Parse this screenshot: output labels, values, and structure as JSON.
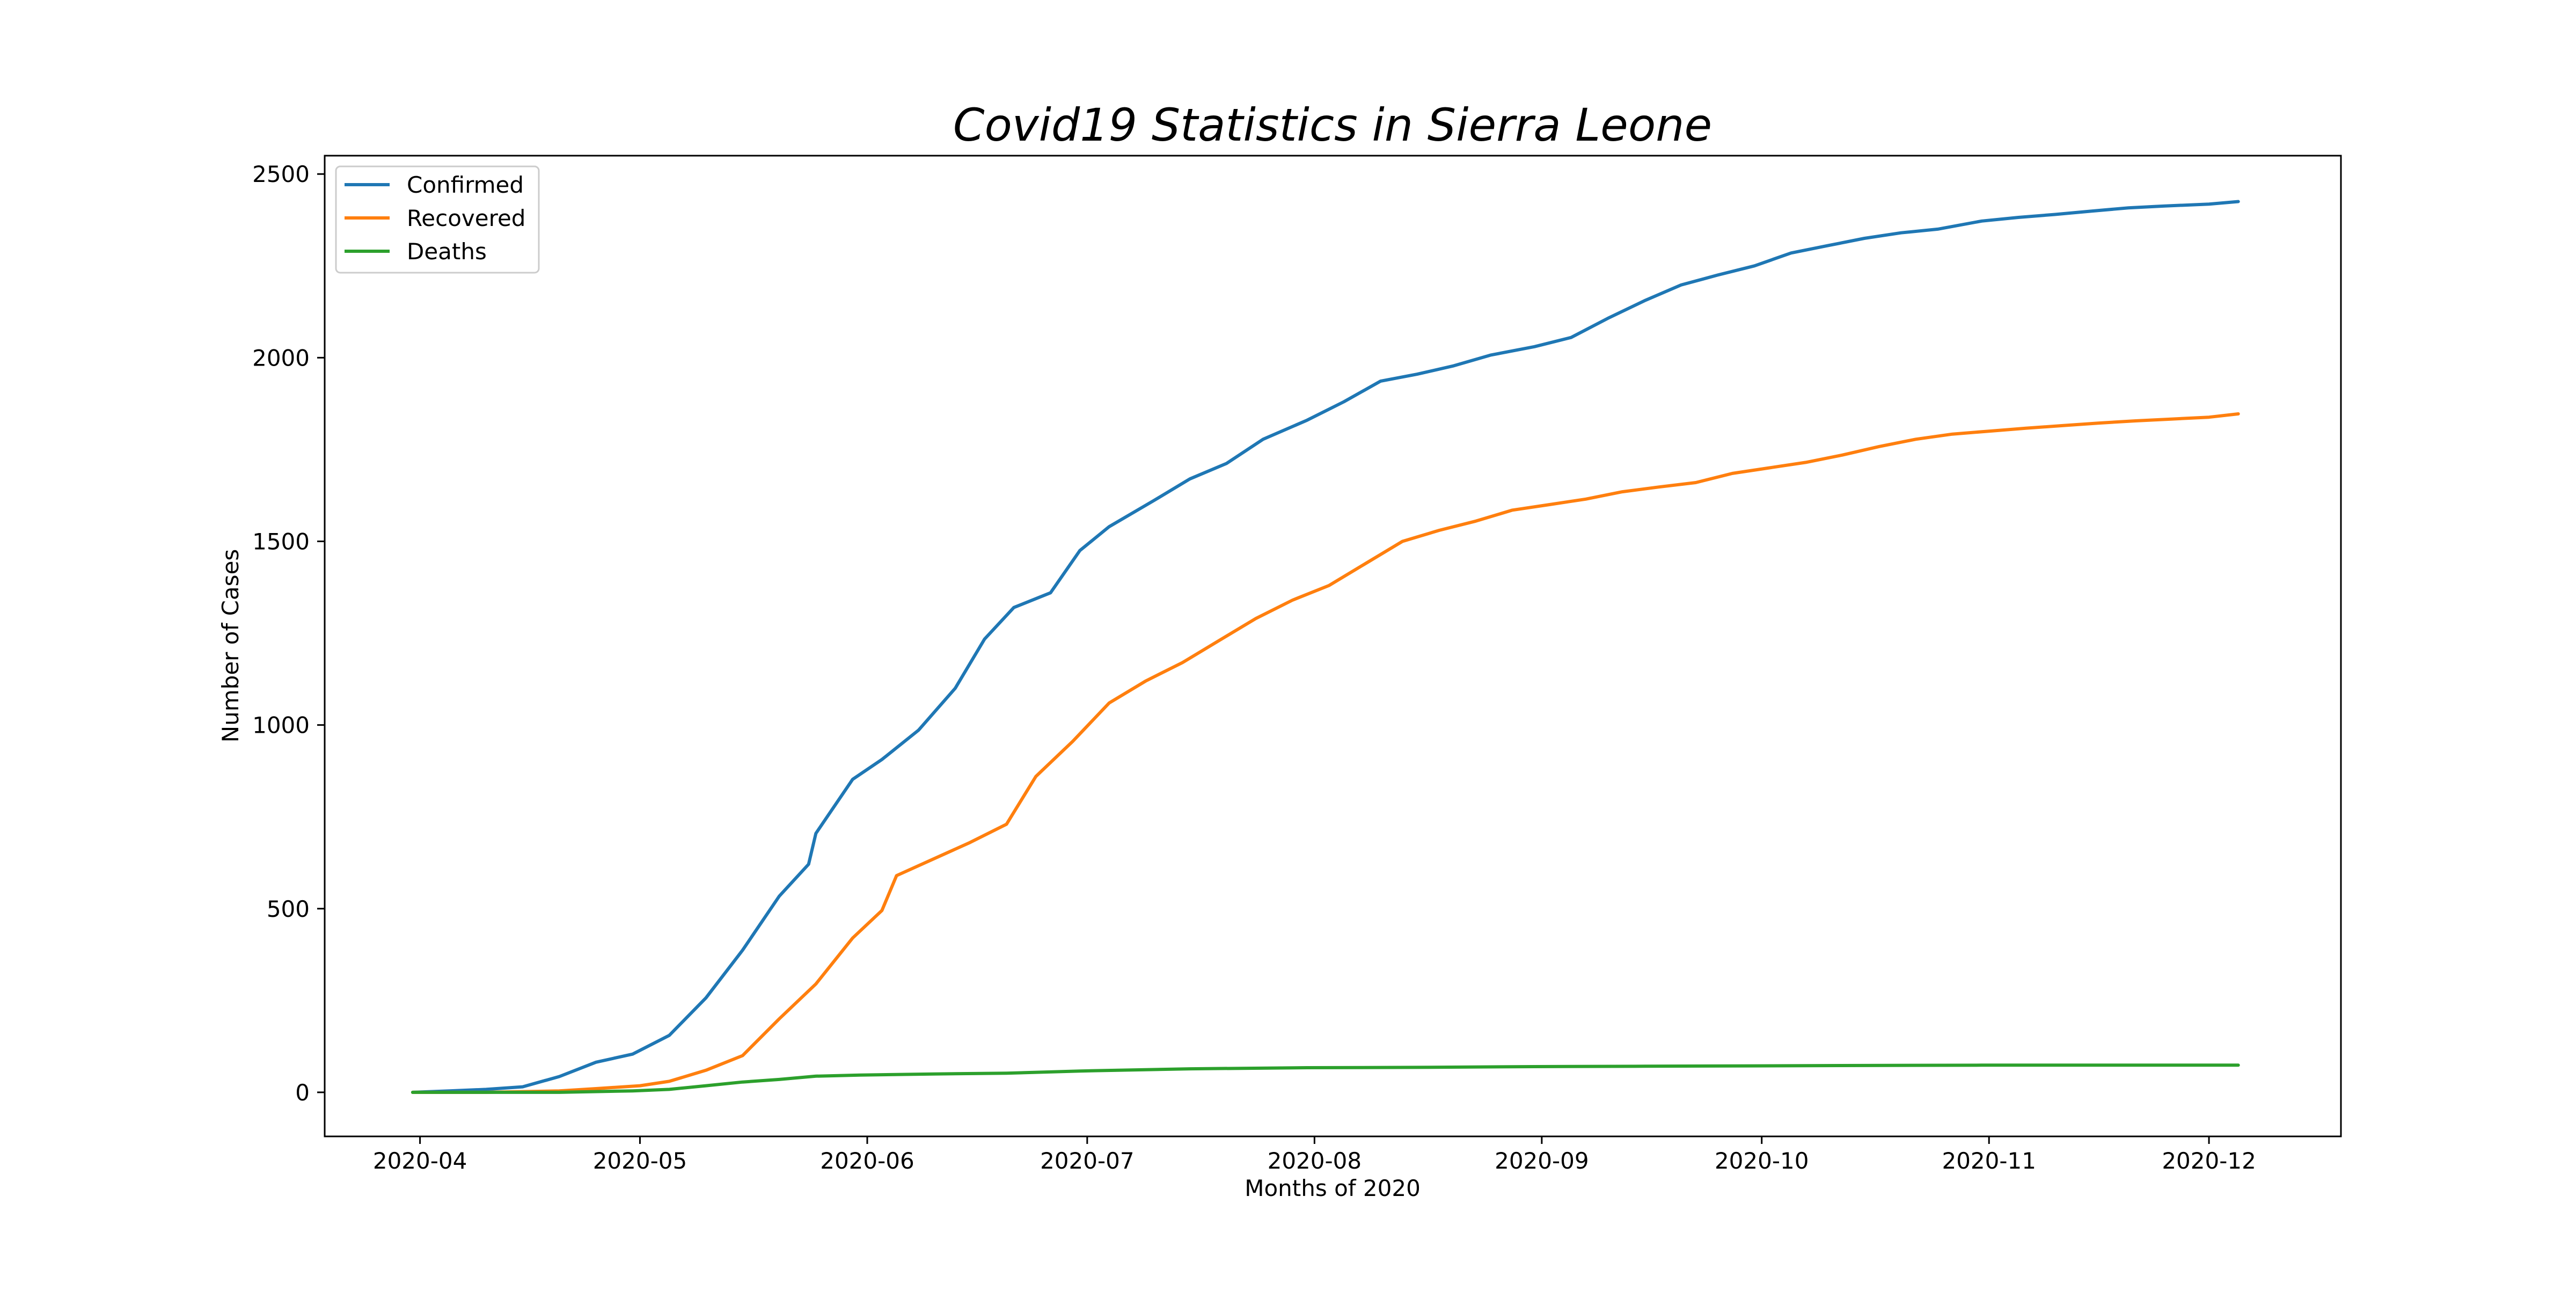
{
  "chart_data": {
    "type": "line",
    "title": "Covid19 Statistics in Sierra Leone",
    "xlabel": "Months of 2020",
    "ylabel": "Number of Cases",
    "xlim": [
      "2020-03-19",
      "2020-12-19"
    ],
    "ylim": [
      -120,
      2550
    ],
    "x_ticks": [
      "2020-04",
      "2020-05",
      "2020-06",
      "2020-07",
      "2020-08",
      "2020-09",
      "2020-10",
      "2020-11",
      "2020-12"
    ],
    "x_tick_dates": [
      "2020-04-01",
      "2020-05-01",
      "2020-06-01",
      "2020-07-01",
      "2020-08-01",
      "2020-09-01",
      "2020-10-01",
      "2020-11-01",
      "2020-12-01"
    ],
    "y_ticks": [
      0,
      500,
      1000,
      1500,
      2000,
      2500
    ],
    "grid": false,
    "legend_position": "top-left",
    "series": [
      {
        "name": "Confirmed",
        "color": "#1f77b4",
        "points": [
          [
            "2020-03-31",
            0
          ],
          [
            "2020-04-05",
            4
          ],
          [
            "2020-04-10",
            8
          ],
          [
            "2020-04-15",
            15
          ],
          [
            "2020-04-20",
            43
          ],
          [
            "2020-04-25",
            82
          ],
          [
            "2020-04-30",
            104
          ],
          [
            "2020-05-05",
            155
          ],
          [
            "2020-05-10",
            257
          ],
          [
            "2020-05-15",
            387
          ],
          [
            "2020-05-20",
            534
          ],
          [
            "2020-05-24",
            621
          ],
          [
            "2020-05-25",
            705
          ],
          [
            "2020-05-30",
            852
          ],
          [
            "2020-06-03",
            906
          ],
          [
            "2020-06-08",
            986
          ],
          [
            "2020-06-13",
            1100
          ],
          [
            "2020-06-17",
            1234
          ],
          [
            "2020-06-21",
            1320
          ],
          [
            "2020-06-26",
            1360
          ],
          [
            "2020-06-30",
            1475
          ],
          [
            "2020-07-04",
            1540
          ],
          [
            "2020-07-10",
            1610
          ],
          [
            "2020-07-15",
            1670
          ],
          [
            "2020-07-20",
            1712
          ],
          [
            "2020-07-25",
            1778
          ],
          [
            "2020-07-31",
            1830
          ],
          [
            "2020-08-05",
            1880
          ],
          [
            "2020-08-10",
            1936
          ],
          [
            "2020-08-15",
            1955
          ],
          [
            "2020-08-20",
            1978
          ],
          [
            "2020-08-25",
            2007
          ],
          [
            "2020-08-31",
            2030
          ],
          [
            "2020-09-05",
            2055
          ],
          [
            "2020-09-10",
            2107
          ],
          [
            "2020-09-15",
            2155
          ],
          [
            "2020-09-20",
            2198
          ],
          [
            "2020-09-25",
            2225
          ],
          [
            "2020-09-30",
            2250
          ],
          [
            "2020-10-05",
            2285
          ],
          [
            "2020-10-10",
            2305
          ],
          [
            "2020-10-15",
            2325
          ],
          [
            "2020-10-20",
            2340
          ],
          [
            "2020-10-25",
            2350
          ],
          [
            "2020-10-31",
            2372
          ],
          [
            "2020-11-05",
            2382
          ],
          [
            "2020-11-10",
            2390
          ],
          [
            "2020-11-15",
            2399
          ],
          [
            "2020-11-20",
            2408
          ],
          [
            "2020-11-25",
            2413
          ],
          [
            "2020-12-01",
            2418
          ],
          [
            "2020-12-05",
            2425
          ]
        ]
      },
      {
        "name": "Recovered",
        "color": "#ff7f0e",
        "points": [
          [
            "2020-03-31",
            0
          ],
          [
            "2020-04-10",
            0
          ],
          [
            "2020-04-20",
            4
          ],
          [
            "2020-04-25",
            10
          ],
          [
            "2020-05-01",
            18
          ],
          [
            "2020-05-05",
            30
          ],
          [
            "2020-05-10",
            60
          ],
          [
            "2020-05-15",
            100
          ],
          [
            "2020-05-20",
            200
          ],
          [
            "2020-05-25",
            295
          ],
          [
            "2020-05-30",
            420
          ],
          [
            "2020-06-03",
            495
          ],
          [
            "2020-06-05",
            590
          ],
          [
            "2020-06-10",
            635
          ],
          [
            "2020-06-15",
            680
          ],
          [
            "2020-06-20",
            730
          ],
          [
            "2020-06-24",
            860
          ],
          [
            "2020-06-29",
            955
          ],
          [
            "2020-07-04",
            1060
          ],
          [
            "2020-07-09",
            1120
          ],
          [
            "2020-07-14",
            1170
          ],
          [
            "2020-07-19",
            1230
          ],
          [
            "2020-07-24",
            1290
          ],
          [
            "2020-07-29",
            1340
          ],
          [
            "2020-08-03",
            1380
          ],
          [
            "2020-08-08",
            1440
          ],
          [
            "2020-08-13",
            1500
          ],
          [
            "2020-08-18",
            1530
          ],
          [
            "2020-08-23",
            1555
          ],
          [
            "2020-08-28",
            1585
          ],
          [
            "2020-09-02",
            1600
          ],
          [
            "2020-09-07",
            1615
          ],
          [
            "2020-09-12",
            1635
          ],
          [
            "2020-09-17",
            1648
          ],
          [
            "2020-09-22",
            1660
          ],
          [
            "2020-09-27",
            1685
          ],
          [
            "2020-10-02",
            1700
          ],
          [
            "2020-10-07",
            1715
          ],
          [
            "2020-10-12",
            1735
          ],
          [
            "2020-10-17",
            1758
          ],
          [
            "2020-10-22",
            1778
          ],
          [
            "2020-10-27",
            1792
          ],
          [
            "2020-11-01",
            1800
          ],
          [
            "2020-11-06",
            1808
          ],
          [
            "2020-11-11",
            1815
          ],
          [
            "2020-11-16",
            1822
          ],
          [
            "2020-11-21",
            1828
          ],
          [
            "2020-11-26",
            1833
          ],
          [
            "2020-12-01",
            1838
          ],
          [
            "2020-12-05",
            1847
          ]
        ]
      },
      {
        "name": "Deaths",
        "color": "#2ca02c",
        "points": [
          [
            "2020-03-31",
            0
          ],
          [
            "2020-04-20",
            0
          ],
          [
            "2020-04-30",
            4
          ],
          [
            "2020-05-05",
            8
          ],
          [
            "2020-05-10",
            18
          ],
          [
            "2020-05-15",
            28
          ],
          [
            "2020-05-20",
            35
          ],
          [
            "2020-05-25",
            44
          ],
          [
            "2020-05-31",
            47
          ],
          [
            "2020-06-10",
            50
          ],
          [
            "2020-06-20",
            52
          ],
          [
            "2020-06-30",
            58
          ],
          [
            "2020-07-15",
            64
          ],
          [
            "2020-07-31",
            67
          ],
          [
            "2020-08-15",
            68
          ],
          [
            "2020-08-31",
            70
          ],
          [
            "2020-09-15",
            71
          ],
          [
            "2020-09-30",
            72
          ],
          [
            "2020-10-15",
            73
          ],
          [
            "2020-10-31",
            74
          ],
          [
            "2020-11-15",
            74
          ],
          [
            "2020-12-05",
            74
          ]
        ]
      }
    ]
  }
}
